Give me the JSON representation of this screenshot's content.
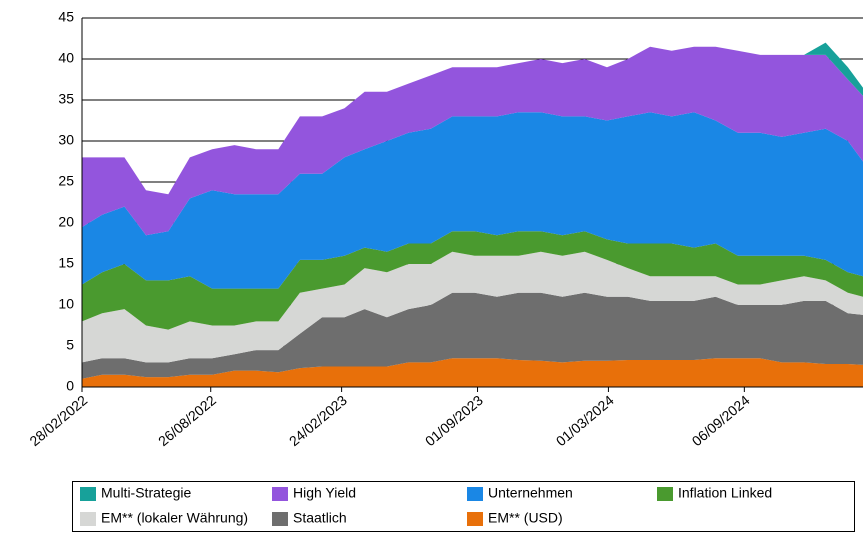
{
  "chart_data": {
    "type": "stacked-area",
    "x": [
      "28/02/2022",
      "28/03/2022",
      "28/04/2022",
      "28/05/2022",
      "28/06/2022",
      "28/07/2022",
      "28/08/2022",
      "28/09/2022",
      "28/10/2022",
      "28/11/2022",
      "28/12/2022",
      "28/01/2023",
      "28/02/2023",
      "28/03/2023",
      "28/04/2023",
      "28/05/2023",
      "28/06/2023",
      "28/07/2023",
      "28/08/2023",
      "28/09/2023",
      "28/10/2023",
      "28/11/2023",
      "28/12/2023",
      "28/01/2024",
      "28/02/2024",
      "28/03/2024",
      "28/04/2024",
      "28/05/2024",
      "28/06/2024",
      "28/07/2024",
      "28/08/2024",
      "28/09/2024",
      "28/10/2024",
      "28/11/2024",
      "28/12/2024",
      "28/01/2025",
      "18/02/2025"
    ],
    "xlim": [
      "28/02/2022",
      "18/02/2025"
    ],
    "xticks": [
      "28/02/2022",
      "26/08/2022",
      "24/02/2023",
      "01/09/2023",
      "01/03/2024",
      "06/09/2024"
    ],
    "ylim": [
      0,
      45
    ],
    "yticks": [
      0,
      5,
      10,
      15,
      20,
      25,
      30,
      35,
      40,
      45
    ],
    "grid": true,
    "series": [
      {
        "name": "Multi-Strategie",
        "color": "#17a19a",
        "values": [
          0,
          0,
          0,
          0,
          0,
          0,
          0,
          0,
          0,
          0,
          0,
          0,
          0,
          0,
          0,
          0,
          0,
          0,
          0,
          0,
          0,
          0,
          0,
          0,
          0,
          0,
          0,
          0,
          0,
          0,
          0,
          0,
          0,
          0,
          1.5,
          1.5,
          1
        ]
      },
      {
        "name": "High Yield",
        "color": "#9355dd",
        "values": [
          8.5,
          7,
          6,
          5.5,
          4.5,
          5,
          5,
          6,
          5.5,
          5.5,
          7,
          7,
          6,
          7,
          6,
          6,
          6.5,
          6,
          6,
          6,
          6,
          6.5,
          6.5,
          7,
          6.5,
          7,
          8,
          8,
          8,
          9,
          10,
          9.5,
          10,
          9.5,
          9,
          7.5,
          8
        ]
      },
      {
        "name": "Unternehmen",
        "color": "#1a87e5",
        "values": [
          7,
          7,
          7,
          5.5,
          6,
          9.5,
          12,
          11.5,
          11.5,
          11.5,
          10.5,
          10.5,
          12,
          12,
          13.5,
          13.5,
          14,
          14,
          14,
          14.5,
          14.5,
          14.5,
          14.5,
          14,
          14.5,
          15.5,
          16,
          15.5,
          16.5,
          15,
          15,
          15,
          14.5,
          15,
          16,
          16,
          14
        ]
      },
      {
        "name": "Inflation Linked",
        "color": "#4a9a2f",
        "values": [
          4.5,
          5,
          5.5,
          5.5,
          6,
          5.5,
          4.5,
          4.5,
          4,
          4,
          4,
          3.5,
          3.5,
          2.5,
          2.5,
          2.5,
          2.5,
          2.5,
          3,
          2.5,
          3,
          2.5,
          2.5,
          2.5,
          2.5,
          3,
          4,
          4,
          3.5,
          4,
          3.5,
          3.5,
          3,
          2.5,
          2.5,
          2.5,
          2.5
        ]
      },
      {
        "name": "EM** (lokaler Währung)",
        "color": "#d6d7d5",
        "values": [
          5,
          5.5,
          6,
          4.5,
          4,
          4.5,
          4,
          3.5,
          3.5,
          3.5,
          5,
          3.5,
          4,
          5,
          5.5,
          5.5,
          5,
          5,
          4.5,
          5,
          4.5,
          5,
          5,
          5,
          4.5,
          3.5,
          3,
          3,
          3,
          2.5,
          2.5,
          2.5,
          3,
          3,
          2.5,
          2.5,
          2.2
        ]
      },
      {
        "name": "Staatlich",
        "color": "#6e6e6e",
        "values": [
          2,
          2,
          2,
          1.8,
          1.8,
          2,
          2,
          2,
          2.5,
          2.7,
          4.2,
          6,
          6,
          7,
          6,
          6.5,
          7,
          8,
          8,
          7.5,
          8.2,
          8.3,
          8,
          8.3,
          7.8,
          7.7,
          7.2,
          7.2,
          7.2,
          7.5,
          6.5,
          6.5,
          7,
          7.5,
          7.7,
          6.2,
          6.1
        ]
      },
      {
        "name": "EM** (USD)",
        "color": "#e8700a",
        "values": [
          1,
          1.5,
          1.5,
          1.2,
          1.2,
          1.5,
          1.5,
          2,
          2,
          1.8,
          2.3,
          2.5,
          2.5,
          2.5,
          2.5,
          3,
          3,
          3.5,
          3.5,
          3.5,
          3.3,
          3.2,
          3,
          3.2,
          3.2,
          3.3,
          3.3,
          3.3,
          3.3,
          3.5,
          3.5,
          3.5,
          3,
          3,
          2.8,
          2.8,
          2.7
        ]
      }
    ]
  }
}
